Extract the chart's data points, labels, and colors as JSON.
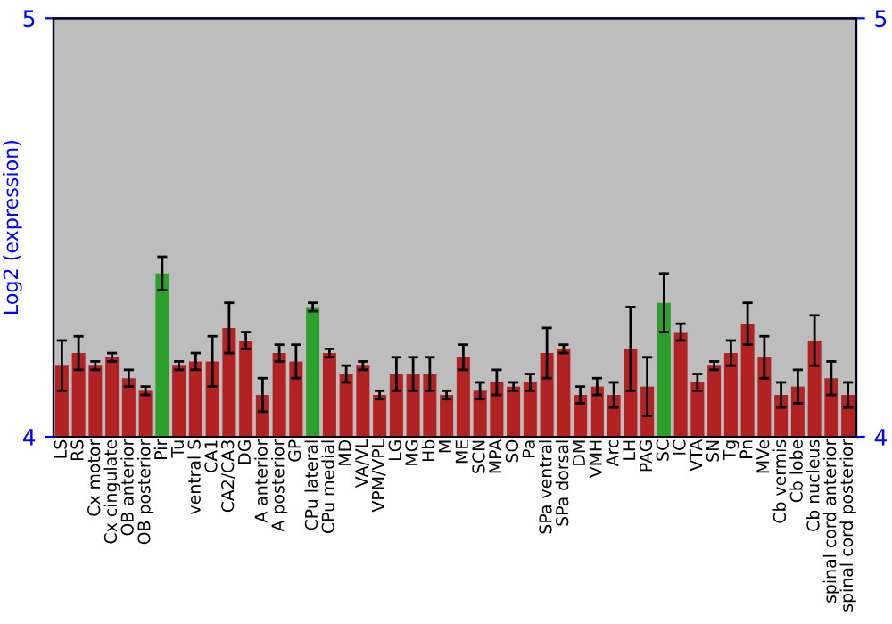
{
  "chart_data": {
    "type": "bar",
    "ylabel": "Log2 (expression)",
    "categories": [
      "LS",
      "RS",
      "Cx motor",
      "Cx cingulate",
      "OB anterior",
      "OB posterior",
      "Pir",
      "Tu",
      "ventral S",
      "CA1",
      "CA2/CA3",
      "DG",
      "A anterior",
      "A posterior",
      "GP",
      "CPu lateral",
      "CPu medial",
      "MD",
      "VA/VL",
      "VPM/VPL",
      "LG",
      "MG",
      "Hb",
      "M",
      "ME",
      "SCN",
      "MPA",
      "SO",
      "Pa",
      "SPa ventral",
      "SPa dorsal",
      "DM",
      "VMH",
      "Arc",
      "LH",
      "PAG",
      "SC",
      "IC",
      "VTA",
      "SN",
      "Tg",
      "Pn",
      "MVe",
      "Cb vermis",
      "Cb lobe",
      "Cb nucleus",
      "spinal cord anterior",
      "spinal cord posterior"
    ],
    "values": [
      4.17,
      4.2,
      4.17,
      4.19,
      4.14,
      4.11,
      4.39,
      4.17,
      4.18,
      4.18,
      4.26,
      4.23,
      4.1,
      4.2,
      4.18,
      4.31,
      4.2,
      4.15,
      4.17,
      4.1,
      4.15,
      4.15,
      4.15,
      4.1,
      4.19,
      4.11,
      4.13,
      4.12,
      4.13,
      4.2,
      4.21,
      4.1,
      4.12,
      4.1,
      4.21,
      4.12,
      4.32,
      4.25,
      4.13,
      4.17,
      4.2,
      4.27,
      4.19,
      4.1,
      4.12,
      4.23,
      4.14,
      4.1
    ],
    "errors": [
      0.06,
      0.04,
      0.01,
      0.01,
      0.02,
      0.01,
      0.04,
      0.01,
      0.02,
      0.06,
      0.06,
      0.02,
      0.04,
      0.02,
      0.04,
      0.01,
      0.01,
      0.02,
      0.01,
      0.01,
      0.04,
      0.04,
      0.04,
      0.01,
      0.03,
      0.02,
      0.03,
      0.01,
      0.02,
      0.06,
      0.01,
      0.02,
      0.02,
      0.03,
      0.1,
      0.07,
      0.07,
      0.02,
      0.02,
      0.01,
      0.03,
      0.05,
      0.05,
      0.03,
      0.04,
      0.06,
      0.04,
      0.03
    ],
    "colors": [
      "#b22222",
      "#b22222",
      "#b22222",
      "#b22222",
      "#b22222",
      "#b22222",
      "#2ca02c",
      "#b22222",
      "#b22222",
      "#b22222",
      "#b22222",
      "#b22222",
      "#b22222",
      "#b22222",
      "#b22222",
      "#2ca02c",
      "#b22222",
      "#b22222",
      "#b22222",
      "#b22222",
      "#b22222",
      "#b22222",
      "#b22222",
      "#b22222",
      "#b22222",
      "#b22222",
      "#b22222",
      "#b22222",
      "#b22222",
      "#b22222",
      "#b22222",
      "#b22222",
      "#b22222",
      "#b22222",
      "#b22222",
      "#b22222",
      "#2ca02c",
      "#b22222",
      "#b22222",
      "#b22222",
      "#b22222",
      "#b22222",
      "#b22222",
      "#b22222",
      "#b22222",
      "#b22222",
      "#b22222",
      "#b22222"
    ],
    "ylim": [
      4,
      5
    ],
    "yticks": [
      4,
      5
    ],
    "y2lim": [
      4,
      5
    ],
    "y2ticks": [
      4,
      5
    ],
    "grid": false
  }
}
